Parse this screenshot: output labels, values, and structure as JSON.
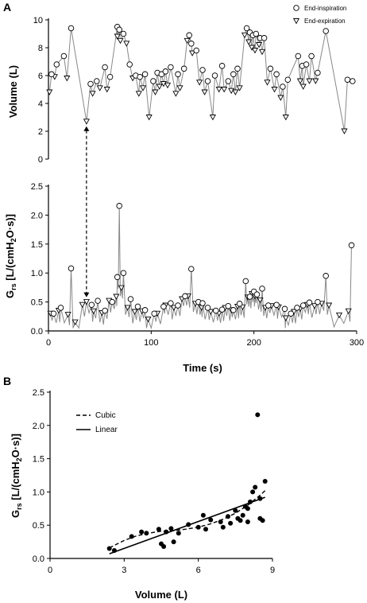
{
  "panels": {
    "a": "A",
    "b": "B"
  },
  "chart_data": [
    {
      "type": "line",
      "panel": "A",
      "subplot": "top",
      "ylabel": "Volume (L)",
      "ylim": [
        0,
        10
      ],
      "yticks": [
        0,
        2,
        4,
        6,
        8,
        10
      ],
      "xlim": [
        0,
        300
      ],
      "grid": false,
      "legend_position": "top-right",
      "legend": {
        "insp": "End-inspiration",
        "exp": "End-expiration"
      },
      "series": [
        {
          "name": "End-inspiration",
          "marker": "circle",
          "x": [
            3,
            8,
            15,
            22,
            41,
            47,
            55,
            60,
            67,
            69,
            73,
            79,
            85,
            89,
            94,
            102,
            106,
            110,
            114,
            119,
            126,
            132,
            137,
            139,
            144,
            150,
            155,
            162,
            169,
            175,
            180,
            184,
            193,
            196,
            199,
            202,
            206,
            210,
            216,
            222,
            228,
            233,
            243,
            247,
            251,
            256,
            262,
            270,
            291,
            296
          ],
          "y": [
            6.1,
            6.8,
            7.4,
            9.4,
            5.4,
            5.6,
            6.6,
            5.9,
            9.5,
            9.3,
            9.0,
            6.8,
            6.0,
            5.9,
            6.1,
            5.6,
            6.2,
            6.1,
            6.3,
            6.6,
            6.1,
            6.5,
            8.9,
            8.3,
            7.8,
            6.4,
            5.6,
            6.0,
            6.7,
            5.6,
            6.1,
            6.5,
            9.4,
            9.1,
            8.9,
            9.0,
            8.7,
            8.7,
            6.5,
            6.1,
            5.2,
            5.7,
            7.4,
            6.7,
            6.8,
            7.4,
            6.2,
            9.2,
            5.7,
            5.6
          ]
        },
        {
          "name": "End-expiration",
          "marker": "triangle",
          "x": [
            1,
            6,
            18,
            37,
            43,
            50,
            57,
            67,
            70,
            76,
            82,
            88,
            92,
            98,
            104,
            108,
            112,
            116,
            124,
            128,
            135,
            140,
            147,
            152,
            160,
            166,
            171,
            178,
            182,
            186,
            191,
            195,
            198,
            201,
            205,
            208,
            213,
            220,
            226,
            231,
            245,
            248,
            254,
            260,
            288
          ],
          "y": [
            4.8,
            5.9,
            5.8,
            2.7,
            4.7,
            5.1,
            5.0,
            8.8,
            8.5,
            8.3,
            5.8,
            4.7,
            5.1,
            3.0,
            4.8,
            5.2,
            5.4,
            5.3,
            4.7,
            5.1,
            8.5,
            7.6,
            5.5,
            4.8,
            3.0,
            5.0,
            5.0,
            4.9,
            4.8,
            5.1,
            8.9,
            8.4,
            8.0,
            7.8,
            8.2,
            7.7,
            5.5,
            5.0,
            4.4,
            3.0,
            5.6,
            5.2,
            5.6,
            5.6,
            2.0
          ]
        }
      ]
    },
    {
      "type": "line",
      "panel": "A",
      "subplot": "bottom",
      "ylabel_main": "G",
      "ylabel_sub": "rs",
      "ylabel_unit_a": " [L/(cmH",
      "ylabel_unit_sub": "2",
      "ylabel_unit_b": "O·s)]",
      "xlabel": "Time (s)",
      "ylim": [
        0,
        2.5
      ],
      "yticks": [
        "0.0",
        "0.5",
        "1.0",
        "1.5",
        "2.0",
        "2.5"
      ],
      "xlim": [
        0,
        300
      ],
      "xticks": [
        0,
        100,
        200,
        300
      ],
      "annotation": {
        "type": "dashed-arrow",
        "x": 37
      },
      "series": [
        {
          "name": "End-inspiration",
          "marker": "circle",
          "x": [
            5,
            12,
            22,
            42,
            48,
            55,
            62,
            67,
            69,
            73,
            80,
            87,
            94,
            103,
            112,
            119,
            126,
            133,
            139,
            146,
            150,
            155,
            163,
            169,
            175,
            180,
            186,
            192,
            196,
            200,
            203,
            208,
            214,
            222,
            230,
            236,
            242,
            248,
            254,
            262,
            270,
            295
          ],
          "y": [
            0.3,
            0.4,
            1.08,
            0.45,
            0.52,
            0.35,
            0.5,
            0.93,
            2.16,
            1.0,
            0.55,
            0.42,
            0.36,
            0.3,
            0.42,
            0.48,
            0.44,
            0.6,
            1.07,
            0.5,
            0.48,
            0.4,
            0.35,
            0.37,
            0.43,
            0.36,
            0.47,
            0.86,
            0.59,
            0.68,
            0.63,
            0.73,
            0.44,
            0.45,
            0.38,
            0.3,
            0.4,
            0.44,
            0.49,
            0.5,
            0.95,
            1.48
          ]
        },
        {
          "name": "End-expiration",
          "marker": "triangle",
          "x": [
            2,
            10,
            19,
            26,
            33,
            37,
            44,
            52,
            59,
            66,
            71,
            77,
            84,
            91,
            97,
            106,
            114,
            122,
            130,
            136,
            143,
            149,
            158,
            166,
            172,
            178,
            184,
            189,
            194,
            198,
            201,
            206,
            211,
            217,
            224,
            231,
            239,
            245,
            252,
            259,
            266,
            273,
            283,
            292
          ],
          "y": [
            0.3,
            0.35,
            0.28,
            0.15,
            0.45,
            0.5,
            0.34,
            0.31,
            0.52,
            0.59,
            0.74,
            0.4,
            0.33,
            0.34,
            0.2,
            0.3,
            0.44,
            0.4,
            0.55,
            0.6,
            0.47,
            0.4,
            0.33,
            0.3,
            0.4,
            0.36,
            0.42,
            0.41,
            0.58,
            0.64,
            0.6,
            0.53,
            0.4,
            0.43,
            0.41,
            0.22,
            0.33,
            0.38,
            0.45,
            0.43,
            0.47,
            0.44,
            0.27,
            0.34
          ]
        }
      ]
    },
    {
      "type": "scatter",
      "panel": "B",
      "ylabel_main": "G",
      "ylabel_sub": "rs",
      "ylabel_unit_a": " [L/(cmH",
      "ylabel_unit_sub": "2",
      "ylabel_unit_b": "O·s)]",
      "xlabel": "Volume (L)",
      "xlim": [
        0,
        9
      ],
      "xticks": [
        0,
        3,
        6,
        9
      ],
      "ylim": [
        0,
        2.5
      ],
      "yticks": [
        "0.0",
        "0.5",
        "1.0",
        "1.5",
        "2.0",
        "2.5"
      ],
      "legend_position": "top-left",
      "legend": {
        "cubic": "Cubic",
        "linear": "Linear"
      },
      "points": {
        "x": [
          2.4,
          2.6,
          3.3,
          3.7,
          3.9,
          4.4,
          4.6,
          4.5,
          4.7,
          4.9,
          5.0,
          5.2,
          5.6,
          6.0,
          6.2,
          6.3,
          6.5,
          6.9,
          7.0,
          7.2,
          7.3,
          7.5,
          7.6,
          7.7,
          7.8,
          7.9,
          8.0,
          8.0,
          8.1,
          8.2,
          8.3,
          8.4,
          8.5,
          8.5,
          8.6,
          8.7
        ],
        "y": [
          0.15,
          0.12,
          0.33,
          0.4,
          0.38,
          0.44,
          0.18,
          0.22,
          0.4,
          0.45,
          0.25,
          0.38,
          0.51,
          0.47,
          0.65,
          0.44,
          0.58,
          0.55,
          0.47,
          0.63,
          0.53,
          0.72,
          0.6,
          0.57,
          0.65,
          0.78,
          0.75,
          0.55,
          0.85,
          1.0,
          1.07,
          2.16,
          0.9,
          0.6,
          0.57,
          1.16
        ]
      },
      "fits": [
        {
          "name": "Linear",
          "style": "solid",
          "x": [
            2.4,
            8.7
          ],
          "y": [
            0.07,
            0.92
          ]
        },
        {
          "name": "Cubic",
          "style": "dashed",
          "x": [
            2.4,
            3.0,
            3.5,
            4.0,
            4.5,
            5.0,
            5.5,
            6.0,
            6.5,
            7.0,
            7.5,
            8.0,
            8.5,
            8.7
          ],
          "y": [
            0.16,
            0.27,
            0.34,
            0.38,
            0.41,
            0.42,
            0.44,
            0.47,
            0.52,
            0.59,
            0.68,
            0.8,
            0.95,
            1.02
          ]
        }
      ]
    }
  ]
}
